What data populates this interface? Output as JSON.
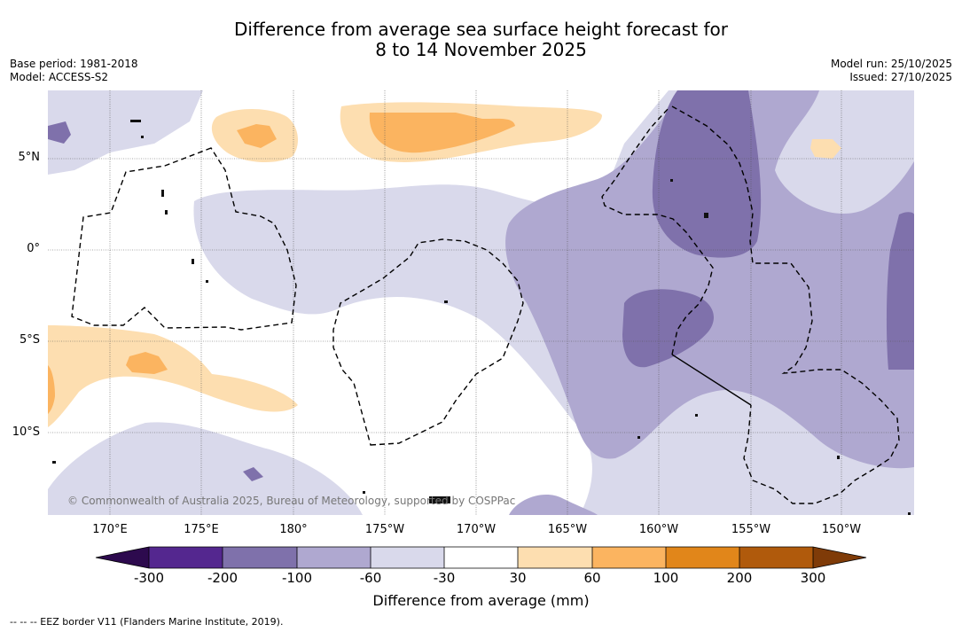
{
  "title": {
    "line1": "Difference from average sea surface height forecast for",
    "line2": "8 to 14 November 2025"
  },
  "meta_left": {
    "base_period": "Base period: 1981-2018",
    "model": "Model: ACCESS-S2"
  },
  "meta_right": {
    "model_run": "Model run: 25/10/2025",
    "issued": "Issued: 27/10/2025"
  },
  "map": {
    "longitude_labels": [
      "170°E",
      "175°E",
      "180°",
      "175°W",
      "170°W",
      "165°W",
      "160°W",
      "155°W",
      "150°W"
    ],
    "latitude_labels": [
      "5°N",
      "0°",
      "5°S",
      "10°S"
    ],
    "copyright": "© Commonwealth of Australia 2025, Bureau of Meteorology, supported by COSPPac"
  },
  "colorbar": {
    "title": "Difference from average (mm)",
    "tick_labels": [
      "-300",
      "-200",
      "-100",
      "-60",
      "-30",
      "30",
      "60",
      "100",
      "200",
      "300"
    ],
    "colors": {
      "below_-300": "#2d0a4e",
      "-300_-200": "#54278f",
      "-200_-100": "#7f71ab",
      "-100_-60": "#afa8d0",
      "-60_-30": "#d9d9eb",
      "-30_30": "#ffffff",
      "30_60": "#fddeb0",
      "60_100": "#fbb460",
      "100_200": "#e1861a",
      "200_300": "#b05a0c",
      "above_300": "#7f3b08"
    }
  },
  "footer": "--  --  -- EEZ border V11 (Flanders Marine Institute, 2019)."
}
